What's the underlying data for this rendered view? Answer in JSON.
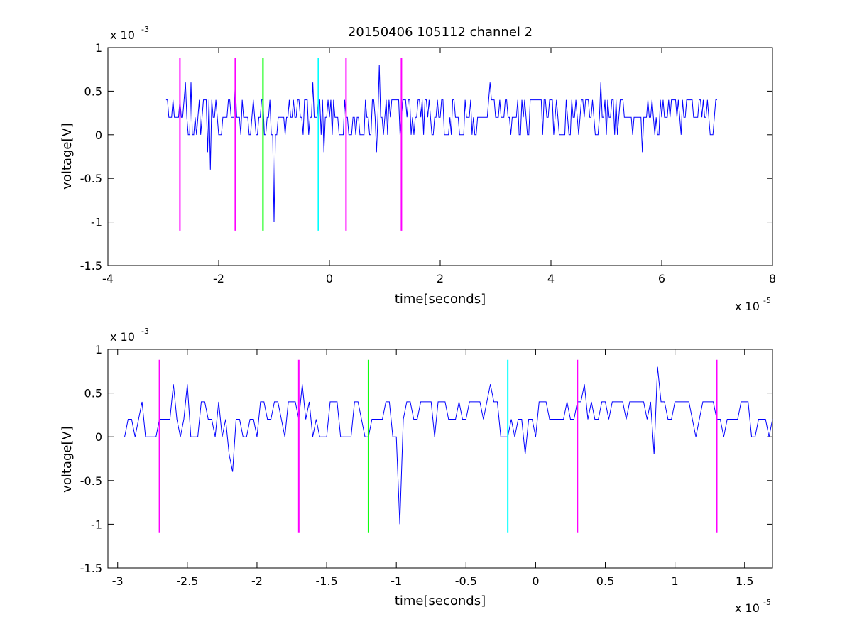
{
  "chart_data": [
    {
      "type": "line",
      "title": "20150406 105112 channel 2",
      "xlabel": "time[seconds]",
      "ylabel": "voltage[V]",
      "x_scale_label": "x 10",
      "x_scale_exp": "-5",
      "y_scale_label": "x 10",
      "y_scale_exp": "-3",
      "xlim": [
        -4,
        8
      ],
      "ylim": [
        -1.5,
        1
      ],
      "x_ticks": [
        -4,
        -2,
        0,
        2,
        4,
        6,
        8
      ],
      "x_tick_labels": [
        "-4",
        "-2",
        "0",
        "2",
        "4",
        "6",
        "8"
      ],
      "y_ticks": [
        1,
        0.5,
        0,
        -0.5,
        -1,
        -1.5
      ],
      "y_tick_labels": [
        "1",
        "0.5",
        "0",
        "-0.5",
        "-1",
        "-1.5"
      ],
      "signal": {
        "color": "#0000ff",
        "x_start": -2.95,
        "x_end": 7.0,
        "baseline": 0.2,
        "levels": [
          0.0,
          0.2,
          0.4
        ],
        "events": [
          {
            "x": -2.6,
            "y": 0.6
          },
          {
            "x": -2.5,
            "y": 0.6
          },
          {
            "x": -2.2,
            "y": -0.2
          },
          {
            "x": -2.15,
            "y": -0.4
          },
          {
            "x": -1.7,
            "y": 0.6
          },
          {
            "x": -1.0,
            "y": -1.0
          },
          {
            "x": -0.3,
            "y": 0.6
          },
          {
            "x": -0.1,
            "y": -0.2
          },
          {
            "x": 0.9,
            "y": 0.8
          },
          {
            "x": 0.85,
            "y": -0.2
          },
          {
            "x": 2.9,
            "y": 0.6
          },
          {
            "x": 4.9,
            "y": 0.6
          },
          {
            "x": 5.65,
            "y": -0.2
          }
        ]
      },
      "markers": [
        {
          "x": -2.7,
          "color": "#ff00ff"
        },
        {
          "x": -1.7,
          "color": "#ff00ff"
        },
        {
          "x": -1.2,
          "color": "#00ff00"
        },
        {
          "x": -0.2,
          "color": "#00ffff"
        },
        {
          "x": 0.3,
          "color": "#ff00ff"
        },
        {
          "x": 1.3,
          "color": "#ff00ff"
        }
      ],
      "marker_range": [
        -1.1,
        0.88
      ]
    },
    {
      "type": "line",
      "title": "",
      "xlabel": "time[seconds]",
      "ylabel": "voltage[V]",
      "x_scale_label": "x 10",
      "x_scale_exp": "-5",
      "y_scale_label": "x 10",
      "y_scale_exp": "-3",
      "xlim": [
        -3.07,
        1.7
      ],
      "ylim": [
        -1.5,
        1
      ],
      "x_ticks": [
        -3,
        -2.5,
        -2,
        -1.5,
        -1,
        -0.5,
        0,
        0.5,
        1,
        1.5
      ],
      "x_tick_labels": [
        "-3",
        "-2.5",
        "-2",
        "-1.5",
        "-1",
        "-0.5",
        "0",
        "0.5",
        "1",
        "1.5"
      ],
      "y_ticks": [
        1,
        0.5,
        0,
        -0.5,
        -1,
        -1.5
      ],
      "y_tick_labels": [
        "1",
        "0.5",
        "0",
        "-0.5",
        "-1",
        "-1.5"
      ],
      "signal": {
        "color": "#0000ff",
        "x_start": -2.95,
        "x_end": 1.7,
        "baseline": 0.2,
        "levels": [
          0.0,
          0.2,
          0.4
        ],
        "events": [
          {
            "x": -2.6,
            "y": 0.6
          },
          {
            "x": -2.5,
            "y": 0.6
          },
          {
            "x": -2.2,
            "y": -0.2
          },
          {
            "x": -2.18,
            "y": -0.4
          },
          {
            "x": -1.68,
            "y": 0.6
          },
          {
            "x": -0.98,
            "y": -1.0
          },
          {
            "x": -0.33,
            "y": 0.6
          },
          {
            "x": -0.08,
            "y": -0.2
          },
          {
            "x": 0.35,
            "y": 0.6
          },
          {
            "x": 0.85,
            "y": -0.2
          },
          {
            "x": 0.88,
            "y": 0.8
          }
        ]
      },
      "markers": [
        {
          "x": -2.7,
          "color": "#ff00ff"
        },
        {
          "x": -1.7,
          "color": "#ff00ff"
        },
        {
          "x": -1.2,
          "color": "#00ff00"
        },
        {
          "x": -0.2,
          "color": "#00ffff"
        },
        {
          "x": 0.3,
          "color": "#ff00ff"
        },
        {
          "x": 1.3,
          "color": "#ff00ff"
        }
      ],
      "marker_range": [
        -1.1,
        0.88
      ]
    }
  ]
}
